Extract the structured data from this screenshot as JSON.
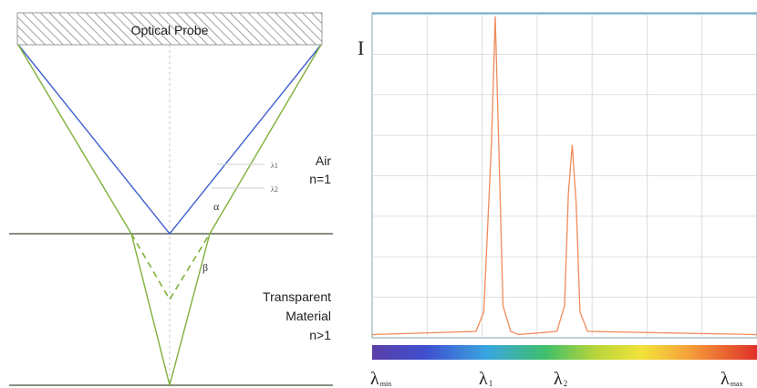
{
  "probe": {
    "label": "Optical Probe"
  },
  "media": {
    "air": {
      "name": "Air",
      "index": "n=1"
    },
    "material": {
      "name_line1": "Transparent",
      "name_line2": "Material",
      "index": "n>1"
    }
  },
  "angles": {
    "alpha": "α",
    "beta": "β"
  },
  "ray_labels": {
    "lambda1": "λ1",
    "lambda2": "λ2"
  },
  "spectrum": {
    "y_axis_label": "I",
    "colorbar_labels": {
      "lambda_min": {
        "symbol": "λ",
        "sub": "min"
      },
      "lambda1": {
        "symbol": "λ",
        "sub": "1"
      },
      "lambda2": {
        "symbol": "λ",
        "sub": "2"
      },
      "lambda_max": {
        "symbol": "λ",
        "sub": "max"
      }
    }
  },
  "colors": {
    "blue_ray": "#3f5fd0",
    "green_ray": "#7fb03a",
    "interface": "#3c4a38",
    "spectrum_line": "#f08a5a",
    "grid": "#d0d6da"
  },
  "chart_data": {
    "type": "line",
    "title": "",
    "xlabel": "",
    "ylabel": "I",
    "x_ticks": [
      "λmin",
      "λ1",
      "λ2",
      "λmax"
    ],
    "series": [
      {
        "x": [
          0.0,
          0.27,
          0.29,
          0.31,
          0.32,
          0.33,
          0.34,
          0.36,
          0.38,
          0.48,
          0.5,
          0.51,
          0.52,
          0.53,
          0.54,
          0.56,
          1.0
        ],
        "y": [
          0.01,
          0.02,
          0.08,
          0.6,
          1.0,
          0.55,
          0.1,
          0.02,
          0.01,
          0.02,
          0.1,
          0.45,
          0.6,
          0.42,
          0.08,
          0.02,
          0.01
        ]
      }
    ],
    "xlim": [
      0,
      1
    ],
    "ylim": [
      0,
      1
    ],
    "grid": true
  }
}
